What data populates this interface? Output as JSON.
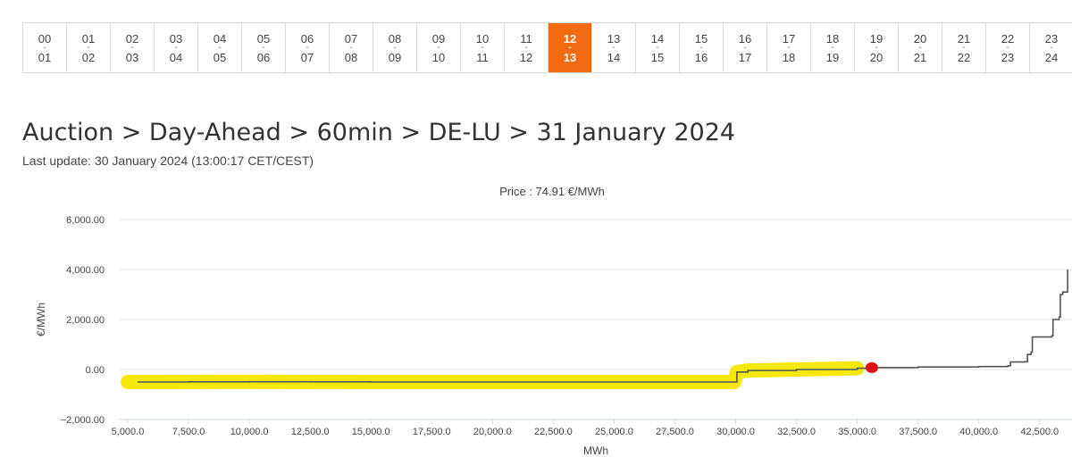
{
  "hours": [
    {
      "from": "00",
      "to": "01"
    },
    {
      "from": "01",
      "to": "02"
    },
    {
      "from": "02",
      "to": "03"
    },
    {
      "from": "03",
      "to": "04"
    },
    {
      "from": "04",
      "to": "05"
    },
    {
      "from": "05",
      "to": "06"
    },
    {
      "from": "06",
      "to": "07"
    },
    {
      "from": "07",
      "to": "08"
    },
    {
      "from": "08",
      "to": "09"
    },
    {
      "from": "09",
      "to": "10"
    },
    {
      "from": "10",
      "to": "11"
    },
    {
      "from": "11",
      "to": "12"
    },
    {
      "from": "12",
      "to": "13",
      "active": true
    },
    {
      "from": "13",
      "to": "14"
    },
    {
      "from": "14",
      "to": "15"
    },
    {
      "from": "15",
      "to": "16"
    },
    {
      "from": "16",
      "to": "17"
    },
    {
      "from": "17",
      "to": "18"
    },
    {
      "from": "18",
      "to": "19"
    },
    {
      "from": "19",
      "to": "20"
    },
    {
      "from": "20",
      "to": "21"
    },
    {
      "from": "21",
      "to": "22"
    },
    {
      "from": "22",
      "to": "23"
    },
    {
      "from": "23",
      "to": "24"
    }
  ],
  "hour_separator": "-",
  "page": {
    "breadcrumb": "Auction > Day-Ahead > 60min > DE-LU > 31 January 2024",
    "last_update": "Last update: 30 January 2024 (13:00:17 CET/CEST)"
  },
  "colors": {
    "accent": "#f26b10",
    "curve": "#555555",
    "highlight": "#f5e600",
    "marker": "#e01010"
  },
  "chart_data": {
    "type": "line",
    "title": "Price : 74.91 €/MWh",
    "xlabel": "MWh",
    "ylabel": "€/MWh",
    "xlim": [
      5000,
      43500
    ],
    "ylim": [
      -2000,
      6000
    ],
    "x_ticks": [
      5000,
      7500,
      10000,
      12500,
      15000,
      17500,
      20000,
      22500,
      25000,
      27500,
      30000,
      32500,
      35000,
      37500,
      40000,
      42500
    ],
    "x_tick_labels": [
      "5,000.0",
      "7,500.0",
      "10,000.0",
      "12,500.0",
      "15,000.0",
      "17,500.0",
      "20,000.0",
      "22,500.0",
      "25,000.0",
      "27,500.0",
      "30,000.0",
      "32,500.0",
      "35,000.0",
      "37,500.0",
      "40,000.0",
      "42,500.0"
    ],
    "y_ticks": [
      -2000,
      0,
      2000,
      4000,
      6000
    ],
    "y_tick_labels": [
      "−2,000.00",
      "0.00",
      "2,000.00",
      "4,000.00",
      "6,000.00"
    ],
    "grid": true,
    "series": [
      {
        "x": [
          5400,
          7500,
          10000,
          12500,
          15000,
          20000,
          25000,
          27500,
          29950,
          30050,
          30500,
          32500,
          35000,
          35500,
          37500,
          40000,
          41200,
          41300,
          41900,
          42000,
          42150,
          42200,
          43000,
          43050,
          43300,
          43350,
          43450,
          43650
        ],
        "y": [
          -500,
          -495,
          -490,
          -495,
          -500,
          -500,
          -500,
          -500,
          -500,
          -100,
          -40,
          0,
          50,
          75,
          100,
          120,
          150,
          300,
          310,
          600,
          700,
          1300,
          1350,
          2000,
          2100,
          3000,
          3100,
          4000
        ]
      }
    ],
    "highlight_range": [
      5000,
      35000
    ],
    "marker": {
      "x": 35600,
      "y": 74.91
    }
  }
}
